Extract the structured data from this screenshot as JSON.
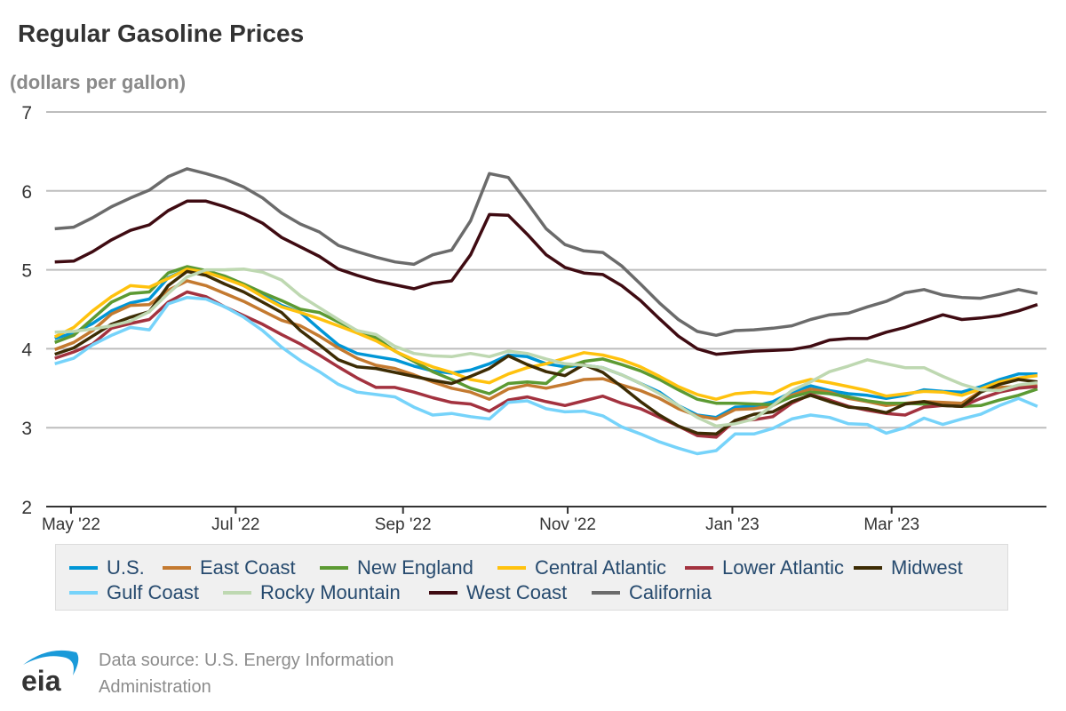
{
  "chart_data": {
    "type": "line",
    "title": "Regular Gasoline Prices",
    "ylabel": "(dollars per gallon)",
    "xlabel": "",
    "ylim": [
      2,
      7
    ],
    "yticks": [
      "2",
      "3",
      "4",
      "5",
      "6",
      "7"
    ],
    "grid": true,
    "legend_position": "bottom",
    "x_ticks": [
      {
        "label": "May '22",
        "date": "2022-05-01"
      },
      {
        "label": "Jul '22",
        "date": "2022-07-01"
      },
      {
        "label": "Sep '22",
        "date": "2022-09-01"
      },
      {
        "label": "Nov '22",
        "date": "2022-11-01"
      },
      {
        "label": "Jan '23",
        "date": "2023-01-01"
      },
      {
        "label": "Mar '23",
        "date": "2023-03-01"
      }
    ],
    "x": [
      "2022-04-25",
      "2022-05-02",
      "2022-05-09",
      "2022-05-16",
      "2022-05-23",
      "2022-05-30",
      "2022-06-06",
      "2022-06-13",
      "2022-06-20",
      "2022-06-27",
      "2022-07-04",
      "2022-07-11",
      "2022-07-18",
      "2022-07-25",
      "2022-08-01",
      "2022-08-08",
      "2022-08-15",
      "2022-08-22",
      "2022-08-29",
      "2022-09-05",
      "2022-09-12",
      "2022-09-19",
      "2022-09-26",
      "2022-10-03",
      "2022-10-10",
      "2022-10-17",
      "2022-10-24",
      "2022-10-31",
      "2022-11-07",
      "2022-11-14",
      "2022-11-21",
      "2022-11-28",
      "2022-12-05",
      "2022-12-12",
      "2022-12-19",
      "2022-12-26",
      "2023-01-02",
      "2023-01-09",
      "2023-01-16",
      "2023-01-23",
      "2023-01-30",
      "2023-02-06",
      "2023-02-13",
      "2023-02-20",
      "2023-02-27",
      "2023-03-06",
      "2023-03-13",
      "2023-03-20",
      "2023-03-27",
      "2023-04-03",
      "2023-04-10",
      "2023-04-17",
      "2023-04-24"
    ],
    "series": [
      {
        "name": "U.S.",
        "color": "#0096d6",
        "values": [
          4.13,
          4.2,
          4.32,
          4.48,
          4.58,
          4.63,
          4.9,
          5.01,
          4.98,
          4.9,
          4.8,
          4.68,
          4.55,
          4.46,
          4.25,
          4.05,
          3.94,
          3.9,
          3.86,
          3.78,
          3.72,
          3.69,
          3.73,
          3.81,
          3.92,
          3.9,
          3.81,
          3.77,
          3.79,
          3.76,
          3.67,
          3.56,
          3.45,
          3.28,
          3.16,
          3.13,
          3.26,
          3.27,
          3.33,
          3.45,
          3.53,
          3.47,
          3.43,
          3.41,
          3.37,
          3.41,
          3.48,
          3.46,
          3.45,
          3.52,
          3.61,
          3.68,
          3.68
        ]
      },
      {
        "name": "East Coast",
        "color": "#c47a30",
        "values": [
          3.99,
          4.08,
          4.23,
          4.44,
          4.55,
          4.56,
          4.74,
          4.86,
          4.8,
          4.7,
          4.6,
          4.48,
          4.36,
          4.29,
          4.16,
          4.01,
          3.88,
          3.79,
          3.75,
          3.67,
          3.58,
          3.5,
          3.45,
          3.36,
          3.49,
          3.54,
          3.5,
          3.55,
          3.61,
          3.62,
          3.54,
          3.47,
          3.37,
          3.24,
          3.15,
          3.11,
          3.23,
          3.24,
          3.28,
          3.41,
          3.49,
          3.45,
          3.37,
          3.33,
          3.28,
          3.31,
          3.33,
          3.32,
          3.31,
          3.46,
          3.51,
          3.52,
          3.53
        ]
      },
      {
        "name": "New England",
        "color": "#5c9a33",
        "values": [
          4.08,
          4.17,
          4.38,
          4.59,
          4.7,
          4.72,
          4.96,
          5.04,
          4.99,
          4.92,
          4.82,
          4.71,
          4.61,
          4.5,
          4.46,
          4.34,
          4.23,
          4.14,
          3.97,
          3.84,
          3.71,
          3.61,
          3.5,
          3.43,
          3.56,
          3.58,
          3.56,
          3.76,
          3.84,
          3.87,
          3.8,
          3.72,
          3.61,
          3.48,
          3.36,
          3.31,
          3.31,
          3.3,
          3.29,
          3.39,
          3.45,
          3.43,
          3.39,
          3.34,
          3.31,
          3.31,
          3.3,
          3.28,
          3.27,
          3.28,
          3.35,
          3.41,
          3.49
        ]
      },
      {
        "name": "Central Atlantic",
        "color": "#ffc20e",
        "values": [
          4.15,
          4.27,
          4.48,
          4.66,
          4.8,
          4.78,
          4.89,
          5.01,
          4.97,
          4.89,
          4.8,
          4.66,
          4.53,
          4.46,
          4.38,
          4.29,
          4.2,
          4.1,
          3.97,
          3.86,
          3.77,
          3.7,
          3.61,
          3.57,
          3.68,
          3.76,
          3.81,
          3.88,
          3.95,
          3.92,
          3.86,
          3.77,
          3.65,
          3.52,
          3.42,
          3.36,
          3.43,
          3.45,
          3.43,
          3.55,
          3.61,
          3.57,
          3.52,
          3.47,
          3.4,
          3.43,
          3.46,
          3.45,
          3.41,
          3.49,
          3.58,
          3.63,
          3.66
        ]
      },
      {
        "name": "Lower Atlantic",
        "color": "#a3323f",
        "values": [
          3.88,
          3.96,
          4.06,
          4.26,
          4.32,
          4.37,
          4.59,
          4.72,
          4.66,
          4.53,
          4.42,
          4.31,
          4.18,
          4.06,
          3.92,
          3.77,
          3.63,
          3.51,
          3.51,
          3.45,
          3.38,
          3.32,
          3.3,
          3.21,
          3.35,
          3.39,
          3.33,
          3.28,
          3.34,
          3.4,
          3.31,
          3.24,
          3.13,
          3.02,
          2.9,
          2.88,
          3.09,
          3.1,
          3.14,
          3.31,
          3.42,
          3.35,
          3.27,
          3.22,
          3.18,
          3.16,
          3.26,
          3.28,
          3.27,
          3.37,
          3.45,
          3.5,
          3.52
        ]
      },
      {
        "name": "Midwest",
        "color": "#3d2c04",
        "values": [
          3.93,
          4.01,
          4.16,
          4.31,
          4.4,
          4.47,
          4.8,
          4.98,
          4.93,
          4.82,
          4.72,
          4.59,
          4.46,
          4.23,
          4.05,
          3.86,
          3.77,
          3.75,
          3.7,
          3.65,
          3.6,
          3.56,
          3.65,
          3.75,
          3.91,
          3.8,
          3.71,
          3.66,
          3.8,
          3.7,
          3.52,
          3.33,
          3.16,
          3.02,
          2.93,
          2.92,
          3.09,
          3.17,
          3.2,
          3.33,
          3.41,
          3.33,
          3.26,
          3.24,
          3.19,
          3.3,
          3.33,
          3.28,
          3.27,
          3.45,
          3.55,
          3.61,
          3.58
        ]
      },
      {
        "name": "Gulf Coast",
        "color": "#76d3fa",
        "values": [
          3.81,
          3.88,
          4.05,
          4.17,
          4.27,
          4.24,
          4.57,
          4.65,
          4.63,
          4.53,
          4.4,
          4.23,
          4.02,
          3.85,
          3.71,
          3.55,
          3.45,
          3.42,
          3.39,
          3.26,
          3.16,
          3.18,
          3.14,
          3.11,
          3.32,
          3.34,
          3.24,
          3.2,
          3.21,
          3.15,
          3.01,
          2.92,
          2.82,
          2.74,
          2.67,
          2.71,
          2.92,
          2.92,
          2.99,
          3.11,
          3.16,
          3.13,
          3.05,
          3.04,
          2.93,
          3.0,
          3.12,
          3.04,
          3.11,
          3.17,
          3.28,
          3.37,
          3.27
        ]
      },
      {
        "name": "Rocky Mountain",
        "color": "#bed8b1",
        "values": [
          4.21,
          4.22,
          4.25,
          4.29,
          4.35,
          4.47,
          4.7,
          4.91,
          5.0,
          5.0,
          5.01,
          4.97,
          4.87,
          4.67,
          4.52,
          4.37,
          4.23,
          4.18,
          4.03,
          3.94,
          3.91,
          3.9,
          3.94,
          3.9,
          3.97,
          3.94,
          3.87,
          3.81,
          3.79,
          3.76,
          3.67,
          3.56,
          3.43,
          3.28,
          3.13,
          3.02,
          3.05,
          3.11,
          3.28,
          3.47,
          3.58,
          3.71,
          3.78,
          3.86,
          3.81,
          3.76,
          3.76,
          3.65,
          3.55,
          3.48,
          3.47,
          3.54,
          3.57
        ]
      },
      {
        "name": "West Coast",
        "color": "#3f0b12",
        "values": [
          5.1,
          5.11,
          5.23,
          5.38,
          5.5,
          5.57,
          5.75,
          5.87,
          5.87,
          5.8,
          5.71,
          5.59,
          5.41,
          5.29,
          5.17,
          5.01,
          4.93,
          4.86,
          4.81,
          4.76,
          4.83,
          4.86,
          5.19,
          5.7,
          5.69,
          5.45,
          5.19,
          5.03,
          4.96,
          4.94,
          4.8,
          4.61,
          4.38,
          4.16,
          4.0,
          3.93,
          3.95,
          3.97,
          3.98,
          3.99,
          4.03,
          4.11,
          4.13,
          4.13,
          4.21,
          4.27,
          4.35,
          4.43,
          4.37,
          4.39,
          4.42,
          4.48,
          4.56
        ]
      },
      {
        "name": "California",
        "color": "#6b6b6b",
        "values": [
          5.52,
          5.54,
          5.66,
          5.8,
          5.91,
          6.01,
          6.18,
          6.28,
          6.22,
          6.15,
          6.05,
          5.91,
          5.72,
          5.58,
          5.48,
          5.31,
          5.23,
          5.16,
          5.1,
          5.07,
          5.19,
          5.25,
          5.62,
          6.22,
          6.17,
          5.85,
          5.52,
          5.32,
          5.24,
          5.22,
          5.05,
          4.82,
          4.58,
          4.37,
          4.22,
          4.17,
          4.23,
          4.24,
          4.26,
          4.29,
          4.37,
          4.43,
          4.45,
          4.53,
          4.6,
          4.71,
          4.75,
          4.68,
          4.65,
          4.64,
          4.69,
          4.75,
          4.7
        ]
      }
    ]
  },
  "footer": {
    "source": "Data source: U.S. Energy Information Administration",
    "logo_text": "eia"
  }
}
